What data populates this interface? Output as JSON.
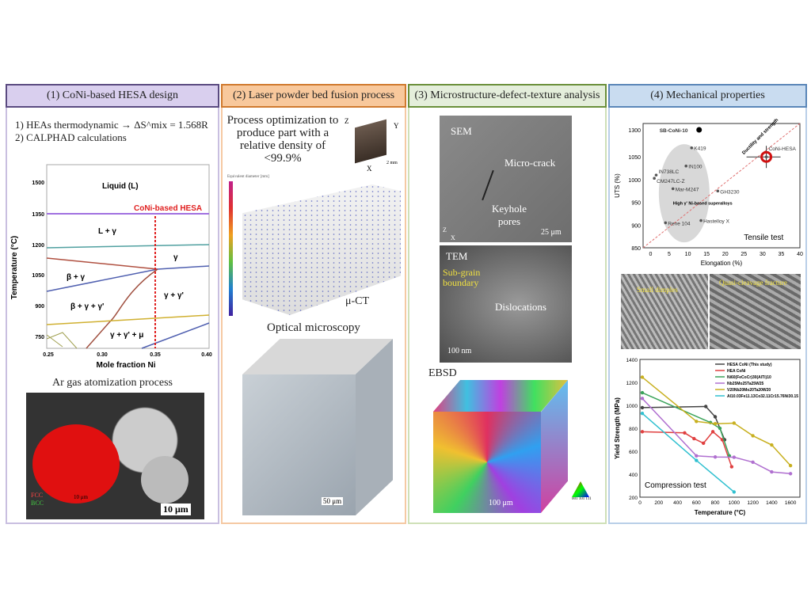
{
  "panels": [
    {
      "title": "(1) CoNi-based HESA design",
      "lines": [
        "1) HEAs thermodynamic → ΔS^mix = 1.568R",
        "2) CALPHAD calculations"
      ],
      "phase": {
        "ylabel": "Temperature (°C)",
        "xlabel": "Mole fraction Ni",
        "yticks": [
          "1500",
          "1350",
          "1200",
          "1050",
          "900",
          "750"
        ],
        "xticks": [
          "0.25",
          "0.30",
          "0.35",
          "0.40"
        ],
        "regions": [
          "Liquid (L)",
          "L + γ",
          "γ",
          "β + γ",
          "β + γ + γ'",
          "γ + γ'",
          "γ + γ' + μ"
        ],
        "marker": "CoNi-based HESA"
      },
      "sub_title": "Ar gas atomization process",
      "fcc": "FCC",
      "bcc": "BCC",
      "scale_inset": "10 μm",
      "scale": "10 μm"
    },
    {
      "title": "(2) Laser powder bed fusion process",
      "text": "Process optimization to produce part with a relative density of <99.9%",
      "axes": {
        "z": "Z",
        "y": "Y",
        "x": "X",
        "scale": "2 mm"
      },
      "colorbar_title": "Equivalent diameter [mm]",
      "ct_label": "μ-CT",
      "om_title": "Optical microscopy",
      "om_scale": "50 μm"
    },
    {
      "title": "(3) Microstructure-defect-texture analysis",
      "sem": {
        "label": "SEM",
        "crack": "Micro-crack",
        "pores": "Keyhole pores",
        "scale": "25 μm",
        "z": "Z",
        "x": "X"
      },
      "tem": {
        "label": "TEM",
        "boundary": "Sub-grain boundary",
        "disl": "Dislocations",
        "scale": "100 nm"
      },
      "ebsd": {
        "label": "EBSD",
        "scale": "100 μm",
        "ipf": [
          "001",
          "101",
          "111"
        ]
      }
    },
    {
      "title": "(4) Mechanical properties",
      "fractures": [
        "Small dimples",
        "Quasi-cleavage fracture"
      ],
      "tensile_label": "Tensile test",
      "compression_label": "Compression test"
    }
  ],
  "chart_data": [
    {
      "type": "scatter",
      "title": "Tensile test",
      "xlabel": "Elongation (%)",
      "ylabel": "UTS (%)",
      "xlim": [
        -2,
        40
      ],
      "ylim": [
        850,
        1320
      ],
      "xticks": [
        "0",
        "5",
        "10",
        "15",
        "20",
        "25",
        "30",
        "35",
        "40"
      ],
      "yticks": [
        "850",
        "900",
        "950",
        "1000",
        "1050",
        "1300"
      ],
      "annotations": [
        "Ductility and strength",
        "High γ' Ni-based superalloys"
      ],
      "points": [
        {
          "name": "SB-CoNi-10",
          "x": 13,
          "y": 1280
        },
        {
          "name": "K419",
          "x": 11,
          "y": 1070
        },
        {
          "name": "IN100",
          "x": 9.5,
          "y": 1030
        },
        {
          "name": "IN738LC",
          "x": 1.5,
          "y": 1010
        },
        {
          "name": "CM247LC-Z",
          "x": 1,
          "y": 1003
        },
        {
          "name": "Mar-M247",
          "x": 6,
          "y": 980
        },
        {
          "name": "GH3230",
          "x": 18,
          "y": 975
        },
        {
          "name": "Rene 104",
          "x": 4,
          "y": 905
        },
        {
          "name": "Hastelloy X",
          "x": 13.5,
          "y": 910
        },
        {
          "name": "CoNi-HESA",
          "x": 31,
          "y": 1050
        }
      ]
    },
    {
      "type": "line",
      "title": "Compression test",
      "xlabel": "Temperature (°C)",
      "ylabel": "Yield Strength (MPa)",
      "xlim": [
        0,
        1700
      ],
      "ylim": [
        200,
        1400
      ],
      "xticks": [
        "0",
        "200",
        "400",
        "600",
        "800",
        "1000",
        "1200",
        "1400",
        "1600"
      ],
      "yticks": [
        "200",
        "400",
        "600",
        "800",
        "1000",
        "1200",
        "1400"
      ],
      "series": [
        {
          "name": "HESA CoNi (This study)",
          "color": "#444444",
          "x": [
            25,
            700,
            800,
            900
          ],
          "y": [
            980,
            990,
            900,
            700
          ]
        },
        {
          "name": "HEA CoNi",
          "color": "#e04040",
          "x": [
            25,
            475,
            575,
            675,
            775,
            875,
            975
          ],
          "y": [
            770,
            760,
            710,
            670,
            770,
            700,
            465
          ]
        },
        {
          "name": "Ni60(FeCoCr)30(AlTi)10",
          "color": "#3aa35a",
          "x": [
            25,
            750,
            850,
            950
          ],
          "y": [
            1110,
            850,
            800,
            560
          ]
        },
        {
          "name": "Nb25Mo25Ta25W25",
          "color": "#b070d0",
          "x": [
            25,
            600,
            800,
            1000,
            1200,
            1400,
            1600
          ],
          "y": [
            1060,
            560,
            550,
            548,
            505,
            420,
            405
          ]
        },
        {
          "name": "V20Nb20Mo20Ta20W20",
          "color": "#c8b020",
          "x": [
            25,
            600,
            800,
            1000,
            1200,
            1400,
            1600
          ],
          "y": [
            1245,
            860,
            840,
            845,
            735,
            655,
            475
          ]
        },
        {
          "name": "Al10.03Fe11.13Co32.11Cr15.76Ni30.15",
          "color": "#30c0d0",
          "x": [
            25,
            600,
            1000
          ],
          "y": [
            930,
            520,
            245
          ]
        }
      ]
    }
  ]
}
